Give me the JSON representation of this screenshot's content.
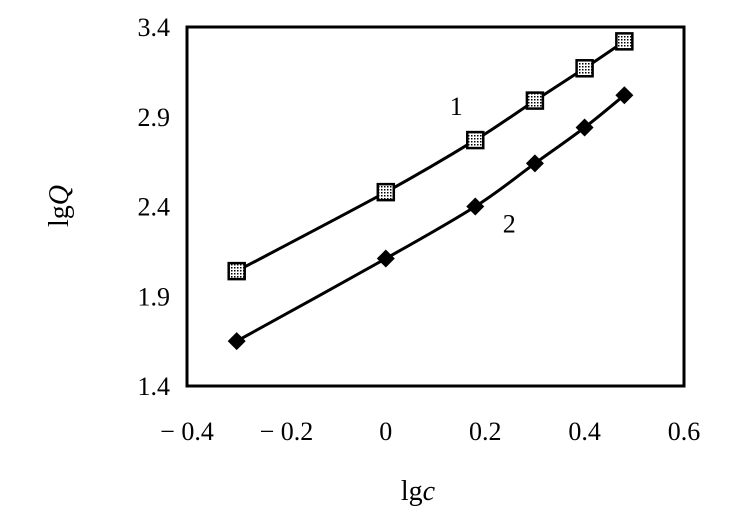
{
  "chart_data": {
    "type": "line",
    "title": "",
    "xlabel_main": "lg",
    "xlabel_var": "c",
    "ylabel_main": "lg",
    "ylabel_var": "Q",
    "xlim": [
      -0.4,
      0.6
    ],
    "ylim": [
      1.4,
      3.4
    ],
    "xticks": [
      -0.4,
      -0.2,
      0,
      0.2,
      0.4,
      0.6
    ],
    "yticks": [
      1.4,
      1.9,
      2.4,
      2.9,
      3.4
    ],
    "xtick_labels": [
      "− 0.4",
      "− 0.2",
      "0",
      "0.2",
      "0.4",
      "0.6"
    ],
    "ytick_labels": [
      "1.4",
      "1.9",
      "2.4",
      "2.9",
      "3.4"
    ],
    "grid": false,
    "series": [
      {
        "name": "1",
        "marker": "square-dotted",
        "x": [
          -0.3,
          0.0,
          0.18,
          0.3,
          0.4,
          0.48
        ],
        "y": [
          2.04,
          2.48,
          2.77,
          2.99,
          3.17,
          3.32
        ]
      },
      {
        "name": "2",
        "marker": "diamond",
        "x": [
          -0.3,
          0.0,
          0.18,
          0.3,
          0.4,
          0.48
        ],
        "y": [
          1.65,
          2.11,
          2.4,
          2.64,
          2.84,
          3.02
        ]
      }
    ]
  }
}
